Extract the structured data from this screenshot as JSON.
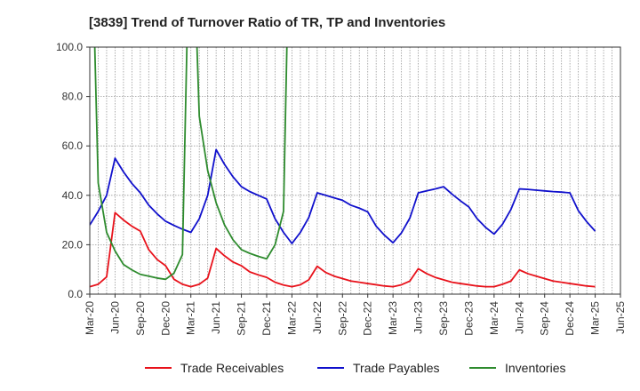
{
  "chart_data": {
    "type": "line",
    "title": "[3839]  Trend of Turnover Ratio of TR, TP and Inventories",
    "ylim": [
      0,
      100
    ],
    "y_ticks": [
      "0.0",
      "20.0",
      "40.0",
      "60.0",
      "80.0",
      "100.0"
    ],
    "x_tick_labels": [
      "Mar-20",
      "Jun-20",
      "Sep-20",
      "Dec-20",
      "Mar-21",
      "Jun-21",
      "Sep-21",
      "Dec-21",
      "Mar-22",
      "Jun-22",
      "Sep-22",
      "Dec-22",
      "Mar-23",
      "Jun-23",
      "Sep-23",
      "Dec-23",
      "Mar-24",
      "Jun-24",
      "Sep-24",
      "Dec-24",
      "Mar-25",
      "Jun-25"
    ],
    "grid": true,
    "legend_position": "bottom",
    "series": [
      {
        "name": "Trade Receivables",
        "color": "#e8121b",
        "x": [
          "2020-03",
          "2020-04",
          "2020-05",
          "2020-06",
          "2020-07",
          "2020-08",
          "2020-09",
          "2020-10",
          "2020-11",
          "2020-12",
          "2021-01",
          "2021-02",
          "2021-03",
          "2021-04",
          "2021-05",
          "2021-06",
          "2021-07",
          "2021-08",
          "2021-09",
          "2021-10",
          "2021-11",
          "2021-12",
          "2022-01",
          "2022-02",
          "2022-03",
          "2022-04",
          "2022-05",
          "2022-06",
          "2022-07",
          "2022-08",
          "2022-09",
          "2022-10",
          "2022-11",
          "2022-12",
          "2023-01",
          "2023-02",
          "2023-03",
          "2023-04",
          "2023-05",
          "2023-06",
          "2023-07",
          "2023-08",
          "2023-09",
          "2023-10",
          "2023-11",
          "2023-12",
          "2024-01",
          "2024-02",
          "2024-03",
          "2024-04",
          "2024-05",
          "2024-06",
          "2024-07",
          "2024-08",
          "2024-09",
          "2024-10",
          "2024-11",
          "2024-12",
          "2025-01",
          "2025-02",
          "2025-03"
        ],
        "values": [
          3.0,
          4.0,
          7.0,
          33.0,
          30.0,
          27.5,
          25.5,
          18.0,
          14.0,
          11.5,
          6.0,
          4.0,
          3.0,
          4.0,
          6.5,
          18.5,
          15.5,
          13.0,
          11.5,
          9.0,
          7.8,
          6.8,
          4.8,
          3.7,
          3.0,
          3.8,
          5.8,
          11.3,
          8.8,
          7.3,
          6.3,
          5.3,
          4.8,
          4.3,
          3.8,
          3.3,
          3.0,
          3.8,
          5.3,
          10.3,
          8.3,
          6.8,
          5.8,
          4.8,
          4.3,
          3.8,
          3.3,
          3.0,
          3.0,
          4.0,
          5.3,
          9.8,
          8.3,
          7.3,
          6.3,
          5.3,
          4.8,
          4.3,
          3.8,
          3.3,
          3.0
        ]
      },
      {
        "name": "Trade Payables",
        "color": "#1010cc",
        "x": [
          "2020-03",
          "2020-04",
          "2020-05",
          "2020-06",
          "2020-07",
          "2020-08",
          "2020-09",
          "2020-10",
          "2020-11",
          "2020-12",
          "2021-01",
          "2021-02",
          "2021-03",
          "2021-04",
          "2021-05",
          "2021-06",
          "2021-07",
          "2021-08",
          "2021-09",
          "2021-10",
          "2021-11",
          "2021-12",
          "2022-01",
          "2022-02",
          "2022-03",
          "2022-04",
          "2022-05",
          "2022-06",
          "2022-07",
          "2022-08",
          "2022-09",
          "2022-10",
          "2022-11",
          "2022-12",
          "2023-01",
          "2023-02",
          "2023-03",
          "2023-04",
          "2023-05",
          "2023-06",
          "2023-07",
          "2023-08",
          "2023-09",
          "2023-10",
          "2023-11",
          "2023-12",
          "2024-01",
          "2024-02",
          "2024-03",
          "2024-04",
          "2024-05",
          "2024-06",
          "2024-07",
          "2024-08",
          "2024-09",
          "2024-10",
          "2024-11",
          "2024-12",
          "2025-01",
          "2025-02",
          "2025-03"
        ],
        "values": [
          28.0,
          33.5,
          40.0,
          55.0,
          49.5,
          44.8,
          41.0,
          36.0,
          32.5,
          29.5,
          27.8,
          26.3,
          25.0,
          30.5,
          40.0,
          58.5,
          52.5,
          47.5,
          43.5,
          41.5,
          40.0,
          38.5,
          30.5,
          25.0,
          20.5,
          25.0,
          31.0,
          41.0,
          40.0,
          39.0,
          38.0,
          36.0,
          34.8,
          33.3,
          27.5,
          23.8,
          20.8,
          24.8,
          30.8,
          41.0,
          41.8,
          42.6,
          43.5,
          40.5,
          37.8,
          35.3,
          30.5,
          27.0,
          24.3,
          28.3,
          34.3,
          42.6,
          42.4,
          42.1,
          41.8,
          41.5,
          41.3,
          41.0,
          33.8,
          29.3,
          25.5
        ]
      },
      {
        "name": "Inventories",
        "color": "#2e8b2e",
        "x": [
          "2020-03",
          "2020-04",
          "2020-05",
          "2020-06",
          "2020-07",
          "2020-08",
          "2020-09",
          "2020-10",
          "2020-11",
          "2020-12",
          "2021-01",
          "2021-02",
          "2021-03",
          "2021-04",
          "2021-05",
          "2021-06",
          "2021-07",
          "2021-08",
          "2021-09",
          "2021-10",
          "2021-11",
          "2021-12",
          "2022-01",
          "2022-02",
          "2022-03"
        ],
        "values": [
          180.0,
          45.0,
          25.0,
          17.5,
          12.0,
          9.8,
          8.0,
          7.3,
          6.5,
          6.0,
          8.5,
          16.0,
          175.0,
          72.0,
          50.0,
          37.0,
          28.0,
          22.0,
          18.0,
          16.5,
          15.3,
          14.3,
          20.0,
          33.5,
          200.0
        ]
      }
    ]
  }
}
